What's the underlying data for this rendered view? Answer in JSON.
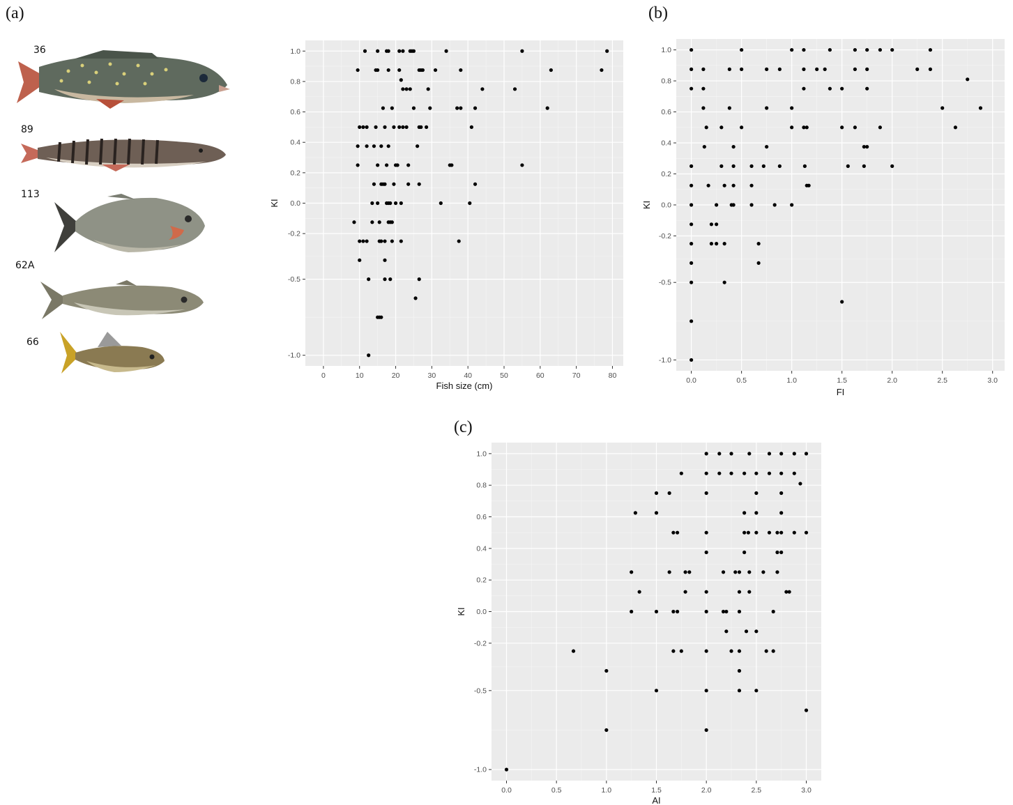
{
  "panels": {
    "a": "(a)",
    "b": "(b)",
    "c": "(c)"
  },
  "fish": [
    {
      "label": "36",
      "colors": {
        "body": "#5f6a5e",
        "belly": "#c8b8a0",
        "fin": "#b7503a",
        "spots": "#d9d07a"
      }
    },
    {
      "label": "89",
      "colors": {
        "body": "#6e5f55",
        "belly": "#d8cfc2",
        "fin": "#c56a5a",
        "stripes": "#2a2320"
      }
    },
    {
      "label": "113",
      "colors": {
        "body": "#8f9286",
        "belly": "#b9b7a8",
        "fin": "#3f3f3b",
        "gill": "#d06a4a"
      }
    },
    {
      "label": "62A",
      "colors": {
        "body": "#8c8a76",
        "belly": "#c8c6b6",
        "fin": "#7a7866"
      }
    },
    {
      "label": "66",
      "colors": {
        "body": "#8a7a52",
        "belly": "#c7b98c",
        "fin": "#c9a227"
      }
    }
  ],
  "chart_data": [
    {
      "id": "a",
      "type": "scatter",
      "xlabel": "Fish size (cm)",
      "ylabel": "KI",
      "xlim": [
        -5,
        83
      ],
      "ylim": [
        -1.07,
        1.07
      ],
      "xticks": [
        0,
        10,
        20,
        30,
        40,
        50,
        60,
        70,
        80
      ],
      "yticks": [
        -1.0,
        -0.5,
        -0.2,
        0.0,
        0.2,
        0.4,
        0.6,
        0.8,
        1.0
      ],
      "ytick_labels": [
        "-1.0",
        "-0.5",
        "-0.2",
        "0.0",
        "0.2",
        "0.4",
        "0.6",
        "0.8",
        "1.0"
      ],
      "grid": true,
      "points": [
        [
          11.5,
          1.0
        ],
        [
          15,
          1.0
        ],
        [
          17.5,
          1.0
        ],
        [
          18,
          1.0
        ],
        [
          21,
          1.0
        ],
        [
          22,
          1.0
        ],
        [
          24,
          1.0
        ],
        [
          24.5,
          1.0
        ],
        [
          25,
          1.0
        ],
        [
          34,
          1.0
        ],
        [
          55,
          1.0
        ],
        [
          78.5,
          1.0
        ],
        [
          9.5,
          0.875
        ],
        [
          14.5,
          0.875
        ],
        [
          15,
          0.875
        ],
        [
          18,
          0.875
        ],
        [
          21,
          0.875
        ],
        [
          26.5,
          0.875
        ],
        [
          27,
          0.875
        ],
        [
          27.5,
          0.875
        ],
        [
          31,
          0.875
        ],
        [
          38,
          0.875
        ],
        [
          63,
          0.875
        ],
        [
          77,
          0.875
        ],
        [
          21.5,
          0.81
        ],
        [
          22,
          0.75
        ],
        [
          23,
          0.75
        ],
        [
          24,
          0.75
        ],
        [
          29,
          0.75
        ],
        [
          44,
          0.75
        ],
        [
          53,
          0.75
        ],
        [
          16.5,
          0.625
        ],
        [
          19,
          0.625
        ],
        [
          25,
          0.625
        ],
        [
          29.5,
          0.625
        ],
        [
          37,
          0.625
        ],
        [
          38,
          0.625
        ],
        [
          42,
          0.625
        ],
        [
          62,
          0.625
        ],
        [
          10,
          0.5
        ],
        [
          11,
          0.5
        ],
        [
          12,
          0.5
        ],
        [
          14.5,
          0.5
        ],
        [
          17,
          0.5
        ],
        [
          19.5,
          0.5
        ],
        [
          21,
          0.5
        ],
        [
          22,
          0.5
        ],
        [
          23,
          0.5
        ],
        [
          26.5,
          0.5
        ],
        [
          27,
          0.5
        ],
        [
          28.5,
          0.5
        ],
        [
          41,
          0.5
        ],
        [
          9.5,
          0.375
        ],
        [
          12,
          0.375
        ],
        [
          14,
          0.375
        ],
        [
          16,
          0.375
        ],
        [
          18,
          0.375
        ],
        [
          26,
          0.375
        ],
        [
          9.5,
          0.25
        ],
        [
          15,
          0.25
        ],
        [
          17.5,
          0.25
        ],
        [
          20,
          0.25
        ],
        [
          20.5,
          0.25
        ],
        [
          23.5,
          0.25
        ],
        [
          35,
          0.25
        ],
        [
          35.5,
          0.25
        ],
        [
          55,
          0.25
        ],
        [
          14,
          0.125
        ],
        [
          16,
          0.125
        ],
        [
          16.5,
          0.125
        ],
        [
          17,
          0.125
        ],
        [
          19.5,
          0.125
        ],
        [
          23.5,
          0.125
        ],
        [
          26.5,
          0.125
        ],
        [
          42,
          0.125
        ],
        [
          13.5,
          0
        ],
        [
          15,
          0
        ],
        [
          17.5,
          0
        ],
        [
          18,
          0
        ],
        [
          18.5,
          0
        ],
        [
          20,
          0
        ],
        [
          21.5,
          0
        ],
        [
          32.5,
          0
        ],
        [
          40.5,
          0
        ],
        [
          8.5,
          -0.125
        ],
        [
          13.5,
          -0.125
        ],
        [
          15.5,
          -0.125
        ],
        [
          18,
          -0.125
        ],
        [
          18.5,
          -0.125
        ],
        [
          19,
          -0.125
        ],
        [
          10,
          -0.25
        ],
        [
          11,
          -0.25
        ],
        [
          12,
          -0.25
        ],
        [
          15.5,
          -0.25
        ],
        [
          16,
          -0.25
        ],
        [
          17,
          -0.25
        ],
        [
          19,
          -0.25
        ],
        [
          21.5,
          -0.25
        ],
        [
          37.5,
          -0.25
        ],
        [
          10,
          -0.375
        ],
        [
          17,
          -0.375
        ],
        [
          12.5,
          -0.5
        ],
        [
          17,
          -0.5
        ],
        [
          18.5,
          -0.5
        ],
        [
          26.5,
          -0.5
        ],
        [
          25.5,
          -0.625
        ],
        [
          15,
          -0.75
        ],
        [
          15.5,
          -0.75
        ],
        [
          16,
          -0.75
        ],
        [
          12.5,
          -1.0
        ]
      ]
    },
    {
      "id": "b",
      "type": "scatter",
      "xlabel": "FI",
      "ylabel": "KI",
      "xlim": [
        -0.15,
        3.12
      ],
      "ylim": [
        -1.07,
        1.07
      ],
      "xticks": [
        0,
        0.5,
        1,
        1.5,
        2,
        2.5,
        3
      ],
      "xtick_labels": [
        "0.0",
        "0.5",
        "1.0",
        "1.5",
        "2.0",
        "2.5",
        "3.0"
      ],
      "yticks": [
        -1.0,
        -0.5,
        -0.2,
        0.0,
        0.2,
        0.4,
        0.6,
        0.8,
        1.0
      ],
      "ytick_labels": [
        "-1.0",
        "-0.5",
        "-0.2",
        "0.0",
        "0.2",
        "0.4",
        "0.6",
        "0.8",
        "1.0"
      ],
      "grid": true,
      "points": [
        [
          0,
          1.0
        ],
        [
          0.5,
          1.0
        ],
        [
          1.0,
          1.0
        ],
        [
          1.12,
          1.0
        ],
        [
          1.38,
          1.0
        ],
        [
          1.63,
          1.0
        ],
        [
          1.75,
          1.0
        ],
        [
          1.88,
          1.0
        ],
        [
          2.0,
          1.0
        ],
        [
          2.38,
          1.0
        ],
        [
          0,
          0.875
        ],
        [
          0.12,
          0.875
        ],
        [
          0.38,
          0.875
        ],
        [
          0.5,
          0.875
        ],
        [
          0.75,
          0.875
        ],
        [
          0.88,
          0.875
        ],
        [
          1.12,
          0.875
        ],
        [
          1.25,
          0.875
        ],
        [
          1.33,
          0.875
        ],
        [
          1.63,
          0.875
        ],
        [
          1.75,
          0.875
        ],
        [
          2.25,
          0.875
        ],
        [
          2.38,
          0.875
        ],
        [
          2.75,
          0.81
        ],
        [
          0,
          0.75
        ],
        [
          0.12,
          0.75
        ],
        [
          1.12,
          0.75
        ],
        [
          1.38,
          0.75
        ],
        [
          1.5,
          0.75
        ],
        [
          1.75,
          0.75
        ],
        [
          0.12,
          0.625
        ],
        [
          0.38,
          0.625
        ],
        [
          0.75,
          0.625
        ],
        [
          1.0,
          0.625
        ],
        [
          2.5,
          0.625
        ],
        [
          2.88,
          0.625
        ],
        [
          0.15,
          0.5
        ],
        [
          0.3,
          0.5
        ],
        [
          0.5,
          0.5
        ],
        [
          1.0,
          0.5
        ],
        [
          1.12,
          0.5
        ],
        [
          1.15,
          0.5
        ],
        [
          1.5,
          0.5
        ],
        [
          1.63,
          0.5
        ],
        [
          1.88,
          0.5
        ],
        [
          2.63,
          0.5
        ],
        [
          0.13,
          0.375
        ],
        [
          0.42,
          0.375
        ],
        [
          0.75,
          0.375
        ],
        [
          1.72,
          0.375
        ],
        [
          1.75,
          0.375
        ],
        [
          0,
          0.25
        ],
        [
          0.3,
          0.25
        ],
        [
          0.42,
          0.25
        ],
        [
          0.6,
          0.25
        ],
        [
          0.72,
          0.25
        ],
        [
          0.88,
          0.25
        ],
        [
          1.13,
          0.25
        ],
        [
          1.56,
          0.25
        ],
        [
          1.72,
          0.25
        ],
        [
          2.0,
          0.25
        ],
        [
          0,
          0.125
        ],
        [
          0.17,
          0.125
        ],
        [
          0.33,
          0.125
        ],
        [
          0.42,
          0.125
        ],
        [
          0.6,
          0.125
        ],
        [
          1.15,
          0.125
        ],
        [
          1.17,
          0.125
        ],
        [
          0,
          0
        ],
        [
          0.25,
          0
        ],
        [
          0.4,
          0
        ],
        [
          0.42,
          0
        ],
        [
          0.6,
          0
        ],
        [
          0.83,
          0
        ],
        [
          1.0,
          0
        ],
        [
          0,
          -0.125
        ],
        [
          0.2,
          -0.125
        ],
        [
          0.25,
          -0.125
        ],
        [
          0,
          -0.25
        ],
        [
          0.2,
          -0.25
        ],
        [
          0.25,
          -0.25
        ],
        [
          0.33,
          -0.25
        ],
        [
          0.67,
          -0.25
        ],
        [
          0,
          -0.375
        ],
        [
          0.67,
          -0.375
        ],
        [
          0,
          -0.5
        ],
        [
          0.33,
          -0.5
        ],
        [
          1.5,
          -0.625
        ],
        [
          0,
          -0.75
        ],
        [
          0,
          -1.0
        ]
      ]
    },
    {
      "id": "c",
      "type": "scatter",
      "xlabel": "AI",
      "ylabel": "KI",
      "xlim": [
        -0.15,
        3.15
      ],
      "ylim": [
        -1.07,
        1.07
      ],
      "xticks": [
        0,
        0.5,
        1,
        1.5,
        2,
        2.5,
        3
      ],
      "xtick_labels": [
        "0.0",
        "0.5",
        "1.0",
        "1.5",
        "2.0",
        "2.5",
        "3.0"
      ],
      "yticks": [
        -1.0,
        -0.5,
        -0.2,
        0.0,
        0.2,
        0.4,
        0.6,
        0.8,
        1.0
      ],
      "ytick_labels": [
        "-1.0",
        "-0.5",
        "-0.2",
        "0.0",
        "0.2",
        "0.4",
        "0.6",
        "0.8",
        "1.0"
      ],
      "grid": true,
      "points": [
        [
          2.0,
          1.0
        ],
        [
          2.13,
          1.0
        ],
        [
          2.25,
          1.0
        ],
        [
          2.43,
          1.0
        ],
        [
          2.63,
          1.0
        ],
        [
          2.75,
          1.0
        ],
        [
          2.88,
          1.0
        ],
        [
          3.0,
          1.0
        ],
        [
          1.75,
          0.875
        ],
        [
          2.0,
          0.875
        ],
        [
          2.13,
          0.875
        ],
        [
          2.25,
          0.875
        ],
        [
          2.38,
          0.875
        ],
        [
          2.5,
          0.875
        ],
        [
          2.63,
          0.875
        ],
        [
          2.75,
          0.875
        ],
        [
          2.88,
          0.875
        ],
        [
          2.94,
          0.81
        ],
        [
          1.5,
          0.75
        ],
        [
          1.63,
          0.75
        ],
        [
          2.0,
          0.75
        ],
        [
          2.5,
          0.75
        ],
        [
          2.75,
          0.75
        ],
        [
          1.29,
          0.625
        ],
        [
          1.5,
          0.625
        ],
        [
          2.38,
          0.625
        ],
        [
          2.5,
          0.625
        ],
        [
          2.75,
          0.625
        ],
        [
          1.67,
          0.5
        ],
        [
          1.71,
          0.5
        ],
        [
          2.0,
          0.5
        ],
        [
          2.38,
          0.5
        ],
        [
          2.42,
          0.5
        ],
        [
          2.5,
          0.5
        ],
        [
          2.63,
          0.5
        ],
        [
          2.71,
          0.5
        ],
        [
          2.75,
          0.5
        ],
        [
          2.88,
          0.5
        ],
        [
          3.0,
          0.5
        ],
        [
          2.0,
          0.375
        ],
        [
          2.38,
          0.375
        ],
        [
          2.71,
          0.375
        ],
        [
          2.75,
          0.375
        ],
        [
          1.25,
          0.25
        ],
        [
          1.63,
          0.25
        ],
        [
          1.79,
          0.25
        ],
        [
          1.83,
          0.25
        ],
        [
          2.17,
          0.25
        ],
        [
          2.29,
          0.25
        ],
        [
          2.33,
          0.25
        ],
        [
          2.43,
          0.25
        ],
        [
          2.57,
          0.25
        ],
        [
          2.71,
          0.25
        ],
        [
          1.33,
          0.125
        ],
        [
          1.79,
          0.125
        ],
        [
          2.0,
          0.125
        ],
        [
          2.33,
          0.125
        ],
        [
          2.43,
          0.125
        ],
        [
          2.8,
          0.125
        ],
        [
          2.83,
          0.125
        ],
        [
          1.25,
          0
        ],
        [
          1.5,
          0
        ],
        [
          1.67,
          0
        ],
        [
          1.71,
          0
        ],
        [
          2.0,
          0
        ],
        [
          2.17,
          0
        ],
        [
          2.2,
          0
        ],
        [
          2.33,
          0
        ],
        [
          2.67,
          0
        ],
        [
          2.2,
          -0.125
        ],
        [
          2.4,
          -0.125
        ],
        [
          2.5,
          -0.125
        ],
        [
          0.67,
          -0.25
        ],
        [
          1.67,
          -0.25
        ],
        [
          1.75,
          -0.25
        ],
        [
          2.0,
          -0.25
        ],
        [
          2.25,
          -0.25
        ],
        [
          2.33,
          -0.25
        ],
        [
          2.6,
          -0.25
        ],
        [
          2.67,
          -0.25
        ],
        [
          1.0,
          -0.375
        ],
        [
          2.33,
          -0.375
        ],
        [
          1.5,
          -0.5
        ],
        [
          2.0,
          -0.5
        ],
        [
          2.33,
          -0.5
        ],
        [
          2.5,
          -0.5
        ],
        [
          3.0,
          -0.625
        ],
        [
          1.0,
          -0.75
        ],
        [
          2.0,
          -0.75
        ],
        [
          0,
          -1.0
        ]
      ]
    }
  ]
}
